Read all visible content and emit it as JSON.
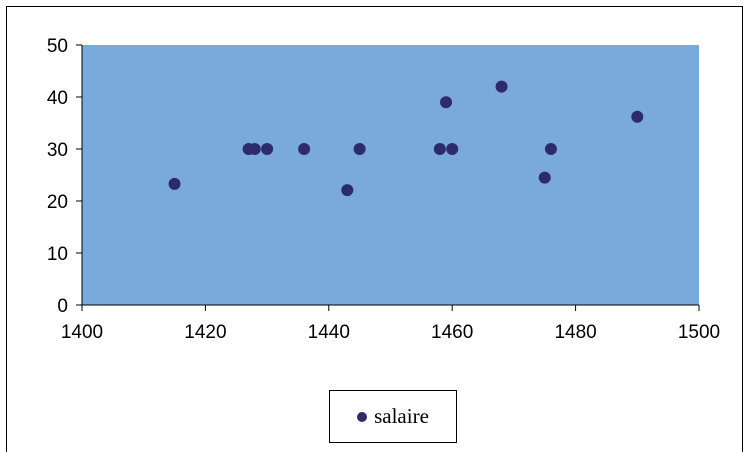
{
  "chart_data": {
    "type": "scatter",
    "series": [
      {
        "name": "salaire",
        "points": [
          [
            1415,
            23.3
          ],
          [
            1427,
            30
          ],
          [
            1428,
            30
          ],
          [
            1430,
            30
          ],
          [
            1436,
            30
          ],
          [
            1443,
            22.1
          ],
          [
            1445,
            30
          ],
          [
            1458,
            30
          ],
          [
            1459,
            39
          ],
          [
            1460,
            30
          ],
          [
            1468,
            42
          ],
          [
            1475,
            24.5
          ],
          [
            1476,
            30
          ],
          [
            1490,
            36.2
          ]
        ]
      }
    ],
    "xlim": [
      1400,
      1500
    ],
    "ylim": [
      0,
      50
    ],
    "x_ticks": [
      1400,
      1420,
      1440,
      1460,
      1480,
      1500
    ],
    "y_ticks": [
      0,
      10,
      20,
      30,
      40,
      50
    ],
    "grid": false,
    "legend_position": "bottom",
    "colors": {
      "plot_background": "#7aaadc",
      "marker": "#2e2a6e"
    }
  }
}
